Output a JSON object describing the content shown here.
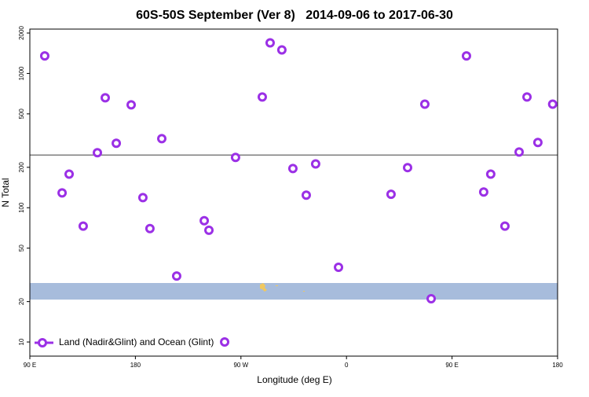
{
  "chart_data": {
    "type": "scatter",
    "title": "60S-50S September (Ver 8)   2014-09-06 to 2017-06-30",
    "xlabel": "Longitude (deg E)",
    "ylabel": "N Total",
    "log_y": true,
    "xlim": [
      90,
      540
    ],
    "xticks": [
      {
        "value": 90,
        "label": "90 E"
      },
      180,
      {
        "value": 270,
        "label": "90 W"
      },
      {
        "value": 360,
        "label": "0"
      },
      {
        "value": 450,
        "label": "90 E"
      },
      {
        "value": 540,
        "label": "180"
      }
    ],
    "ylim": [
      7.85,
      2140
    ],
    "yticks": [
      10,
      20,
      50,
      100,
      200,
      500,
      1000,
      2000
    ],
    "reference_line": 247,
    "band": [
      20.7,
      27.5
    ],
    "band_color": "#a7bcdc",
    "legend_position": "lower left",
    "series": [
      {
        "name": "Land (Nadir&Glint) and Ocean (Glint)",
        "color": "#9b30e6",
        "x": [
          102.7,
          117.5,
          123.5,
          135.5,
          147.6,
          154.3,
          163.7,
          176.4,
          186.4,
          192.4,
          202.5,
          215.2,
          238.7,
          242.7,
          256.1,
          265.4,
          288.2,
          294.9,
          304.9,
          314.3,
          325.7,
          333.7,
          353.2,
          398.0,
          412.1,
          426.8,
          432.2,
          462.3,
          477.0,
          483.0,
          495.1,
          507.2,
          513.9,
          523.2,
          535.8
        ],
        "values": [
          1350,
          129,
          178,
          73,
          257,
          659,
          302,
          584,
          119,
          70,
          327,
          31,
          80,
          68,
          10,
          237,
          668,
          1690,
          1497,
          196,
          124,
          212,
          36,
          126,
          199,
          591,
          21,
          1350,
          131,
          178,
          73,
          260,
          668,
          306,
          591
        ]
      }
    ]
  }
}
